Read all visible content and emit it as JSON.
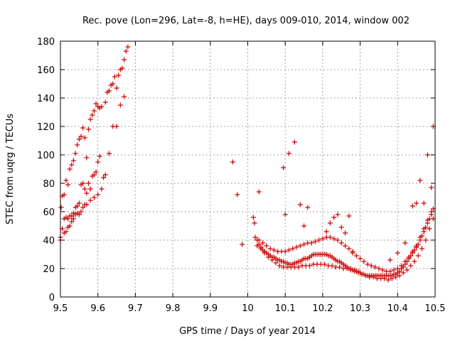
{
  "chart_data": {
    "type": "scatter",
    "title": "Rec. pove (Lon=296, Lat=-8, h=HE), days 009-010, 2014, window 002",
    "xlabel": "GPS time / Days of year 2014",
    "ylabel": "STEC from uqrg / TECUs",
    "xlim": [
      9.5,
      10.5
    ],
    "ylim": [
      0,
      180
    ],
    "xticks": [
      9.5,
      9.6,
      9.7,
      9.8,
      9.9,
      10.0,
      10.1,
      10.2,
      10.3,
      10.4,
      10.5
    ],
    "xtick_labels": [
      "9.5",
      "9.6",
      "9.7",
      "9.8",
      "9.9",
      "10",
      "10.1",
      "10.2",
      "10.3",
      "10.4",
      "10.5"
    ],
    "yticks": [
      0,
      20,
      40,
      60,
      80,
      100,
      120,
      140,
      160,
      180
    ],
    "ytick_labels": [
      "0",
      "20",
      "40",
      "60",
      "80",
      "100",
      "120",
      "140",
      "160",
      "180"
    ],
    "grid": true,
    "marker": "+",
    "color": "#cc0000",
    "series": [
      {
        "x": [
          9.5,
          9.502,
          9.505,
          9.51,
          9.515,
          9.52,
          9.525,
          9.53,
          9.535,
          9.54,
          9.545,
          9.55,
          9.555,
          9.56,
          9.565,
          9.57,
          9.575,
          9.58,
          9.585,
          9.59,
          9.595,
          9.6,
          9.605,
          9.61,
          9.62,
          9.625,
          9.63,
          9.635,
          9.64,
          9.645,
          9.65,
          9.655,
          9.66,
          9.665,
          9.67,
          9.675,
          9.68
        ],
        "y": [
          40,
          63,
          71,
          72,
          82,
          79,
          90,
          93,
          96,
          101,
          107,
          111,
          113,
          119,
          112,
          98,
          118,
          125,
          128,
          131,
          136,
          134,
          133,
          134,
          137,
          144,
          145,
          149,
          150,
          155,
          147,
          156,
          160,
          161,
          167,
          173,
          176
        ]
      },
      {
        "x": [
          9.5,
          9.505,
          9.51,
          9.515,
          9.52,
          9.525,
          9.53,
          9.535,
          9.54,
          9.545,
          9.55,
          9.555,
          9.56,
          9.565,
          9.57,
          9.575,
          9.58,
          9.585,
          9.59,
          9.595,
          9.6,
          9.605,
          9.61,
          9.615,
          9.62,
          9.63,
          9.64,
          9.65,
          9.66,
          9.67
        ],
        "y": [
          42,
          48,
          55,
          56,
          55,
          57,
          57,
          59,
          63,
          64,
          66,
          79,
          80,
          76,
          73,
          80,
          76,
          85,
          86,
          88,
          95,
          99,
          76,
          84,
          86,
          101,
          120,
          120,
          135,
          141
        ]
      },
      {
        "x": [
          9.51,
          9.515,
          9.52,
          9.525,
          9.53,
          9.535,
          9.54,
          9.545,
          9.55,
          9.555,
          9.56,
          9.565,
          9.57,
          9.58,
          9.59,
          9.6
        ],
        "y": [
          45,
          46,
          49,
          50,
          53,
          55,
          58,
          59,
          58,
          60,
          63,
          65,
          65,
          68,
          70,
          72
        ]
      },
      {
        "x": [
          9.96,
          9.972,
          9.985,
          10.015,
          10.018,
          10.03
        ],
        "y": [
          95,
          72,
          37,
          56,
          52,
          74
        ]
      },
      {
        "x": [
          10.02,
          10.025,
          10.03,
          10.035,
          10.04,
          10.045,
          10.05,
          10.055,
          10.06,
          10.065,
          10.07,
          10.075,
          10.08,
          10.085,
          10.09,
          10.095,
          10.1,
          10.105,
          10.11,
          10.115,
          10.12,
          10.125,
          10.13,
          10.135,
          10.14,
          10.145,
          10.15,
          10.155,
          10.16,
          10.165,
          10.17,
          10.175,
          10.18,
          10.185,
          10.19,
          10.195,
          10.2,
          10.205,
          10.21,
          10.215,
          10.22,
          10.225,
          10.23,
          10.235,
          10.24,
          10.245,
          10.25,
          10.255,
          10.26,
          10.265,
          10.27,
          10.275,
          10.28,
          10.285,
          10.29,
          10.295,
          10.3,
          10.305,
          10.31,
          10.315,
          10.32,
          10.325,
          10.33,
          10.335,
          10.34,
          10.345,
          10.35,
          10.355,
          10.36,
          10.365,
          10.37,
          10.375,
          10.38,
          10.385,
          10.39,
          10.395,
          10.4,
          10.405,
          10.41,
          10.415,
          10.42,
          10.425,
          10.43,
          10.435,
          10.44,
          10.445,
          10.45,
          10.455,
          10.46,
          10.465,
          10.47,
          10.475,
          10.48,
          10.485,
          10.49,
          10.495
        ],
        "y": [
          42,
          40,
          37,
          35,
          33,
          32,
          31,
          30,
          29,
          28,
          28,
          27,
          26,
          26,
          25,
          25,
          24,
          24,
          23,
          23,
          23,
          24,
          24,
          25,
          25,
          26,
          27,
          27,
          27,
          28,
          29,
          30,
          30,
          30,
          30,
          30,
          30,
          30,
          30,
          29,
          29,
          28,
          27,
          26,
          25,
          25,
          24,
          23,
          22,
          21,
          20,
          20,
          19,
          19,
          18,
          18,
          17,
          16,
          16,
          15,
          15,
          15,
          15,
          15,
          15,
          15,
          15,
          15,
          15,
          15,
          15,
          15,
          15,
          15,
          16,
          16,
          17,
          18,
          20,
          21,
          23,
          25,
          27,
          29,
          31,
          33,
          35,
          37,
          40,
          43,
          46,
          49,
          52,
          55,
          58,
          62
        ]
      },
      {
        "x": [
          10.025,
          10.035,
          10.045,
          10.055,
          10.065,
          10.075,
          10.085,
          10.095,
          10.105,
          10.115,
          10.125,
          10.135,
          10.145,
          10.155,
          10.165,
          10.175,
          10.185,
          10.195,
          10.205,
          10.215,
          10.225,
          10.235,
          10.245,
          10.255,
          10.265,
          10.275,
          10.285,
          10.295,
          10.305,
          10.315,
          10.325,
          10.335,
          10.345,
          10.355,
          10.365,
          10.375,
          10.385,
          10.395,
          10.405,
          10.415,
          10.425,
          10.435,
          10.445,
          10.455,
          10.465,
          10.475,
          10.485,
          10.495
        ],
        "y": [
          36,
          34,
          31,
          28,
          26,
          24,
          22,
          21,
          21,
          21,
          21,
          21,
          22,
          22,
          22,
          23,
          23,
          23,
          23,
          22,
          22,
          21,
          21,
          20,
          20,
          19,
          18,
          17,
          16,
          15,
          14,
          14,
          13,
          13,
          13,
          12,
          13,
          14,
          15,
          17,
          19,
          22,
          25,
          29,
          34,
          40,
          48,
          55
        ]
      },
      {
        "x": [
          10.03,
          10.04,
          10.05,
          10.06,
          10.07,
          10.08,
          10.09,
          10.1,
          10.11,
          10.12,
          10.13,
          10.14,
          10.15,
          10.16,
          10.17,
          10.18,
          10.19,
          10.2,
          10.21,
          10.22,
          10.23,
          10.24,
          10.25,
          10.26,
          10.27,
          10.28,
          10.29,
          10.3,
          10.31,
          10.32,
          10.33,
          10.34,
          10.35,
          10.36,
          10.37,
          10.38,
          10.39,
          10.4,
          10.41,
          10.42,
          10.43,
          10.44,
          10.45,
          10.46,
          10.47,
          10.48,
          10.49
        ],
        "y": [
          40,
          38,
          36,
          34,
          33,
          32,
          32,
          32,
          33,
          34,
          35,
          36,
          37,
          38,
          38,
          39,
          40,
          41,
          42,
          42,
          41,
          40,
          38,
          36,
          34,
          32,
          29,
          27,
          25,
          23,
          22,
          21,
          20,
          19,
          18,
          18,
          19,
          20,
          22,
          25,
          28,
          32,
          36,
          42,
          48,
          54,
          60
        ]
      },
      {
        "x": [
          10.095,
          10.1,
          10.11,
          10.125,
          10.14,
          10.15,
          10.16,
          10.21,
          10.22,
          10.23,
          10.24,
          10.25,
          10.26,
          10.27,
          10.28,
          10.38,
          10.4,
          10.42,
          10.44,
          10.45,
          10.46,
          10.47,
          10.48,
          10.49,
          10.495
        ],
        "y": [
          91,
          58,
          101,
          109,
          65,
          50,
          63,
          46,
          52,
          56,
          58,
          49,
          45,
          57,
          31,
          26,
          31,
          38,
          64,
          66,
          82,
          66,
          100,
          77,
          120
        ]
      }
    ]
  }
}
